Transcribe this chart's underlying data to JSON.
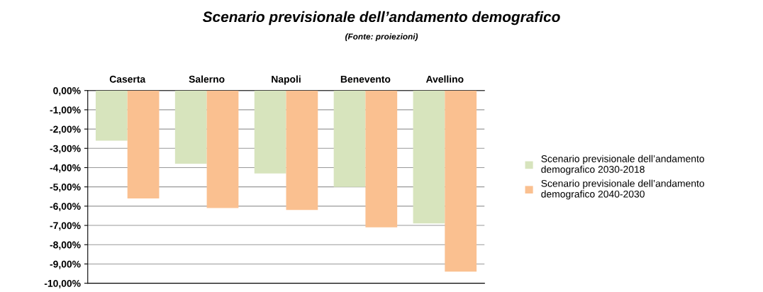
{
  "chart_data": {
    "type": "bar",
    "title": "Scenario previsionale dell’andamento demografico",
    "subtitle": "(Fonte: proiezioni)",
    "categories": [
      "Caserta",
      "Salerno",
      "Napoli",
      "Benevento",
      "Avellino"
    ],
    "series": [
      {
        "name": "Scenario previsionale dell’andamento demografico 2030-2018",
        "color": "#d7e4bd",
        "values": [
          -2.6,
          -3.8,
          -4.3,
          -5.0,
          -6.9
        ]
      },
      {
        "name": "Scenario previsionale dell’andamento demografico 2040-2030",
        "color": "#fac090",
        "values": [
          -5.6,
          -6.1,
          -6.2,
          -7.1,
          -9.4
        ]
      }
    ],
    "ylim": [
      -10,
      0
    ],
    "yticks": [
      {
        "value": 0,
        "label": "0,00%"
      },
      {
        "value": -1,
        "label": "-1,00%"
      },
      {
        "value": -2,
        "label": "-2,00%"
      },
      {
        "value": -3,
        "label": "-3,00%"
      },
      {
        "value": -4,
        "label": "-4,00%"
      },
      {
        "value": -5,
        "label": "-5,00%"
      },
      {
        "value": -6,
        "label": "-6,00%"
      },
      {
        "value": -7,
        "label": "-7,00%"
      },
      {
        "value": -8,
        "label": "-8,00%"
      },
      {
        "value": -9,
        "label": "-9,00%"
      },
      {
        "value": -10,
        "label": "-10,00%"
      }
    ],
    "grid": "y",
    "legend": "right"
  }
}
